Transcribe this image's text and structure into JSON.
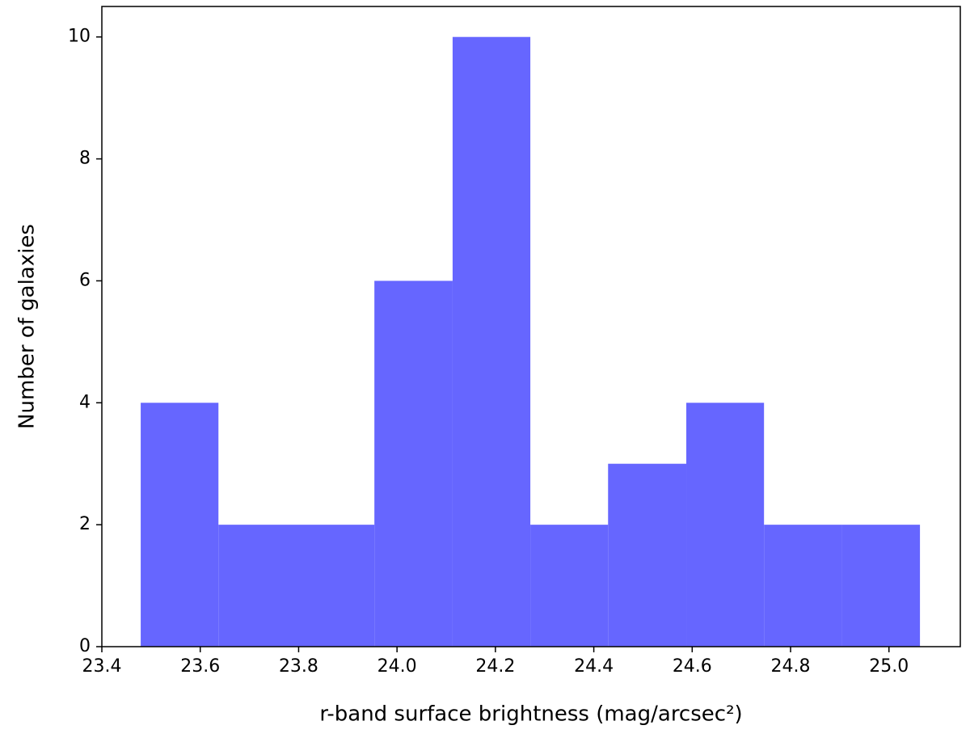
{
  "chart_data": {
    "type": "histogram",
    "xlabel": "r-band surface brightness (mag/arcsec²)",
    "ylabel": "Number of galaxies",
    "bins": [
      23.479,
      23.637,
      23.796,
      23.954,
      24.113,
      24.271,
      24.429,
      24.588,
      24.746,
      24.905,
      25.063
    ],
    "counts": [
      4,
      2,
      2,
      6,
      10,
      2,
      3,
      4,
      2,
      2
    ],
    "color": "#6666ff",
    "xlim": [
      23.4,
      25.145
    ],
    "ylim": [
      0,
      10.5
    ],
    "xticks": [
      23.4,
      23.6,
      23.8,
      {
        "value": 24,
        "label": "24.0"
      },
      24.2,
      24.4,
      24.6,
      24.8,
      {
        "value": 25,
        "label": "25.0"
      }
    ],
    "yticks": [
      0,
      2,
      4,
      6,
      8,
      10
    ],
    "grid": false
  }
}
